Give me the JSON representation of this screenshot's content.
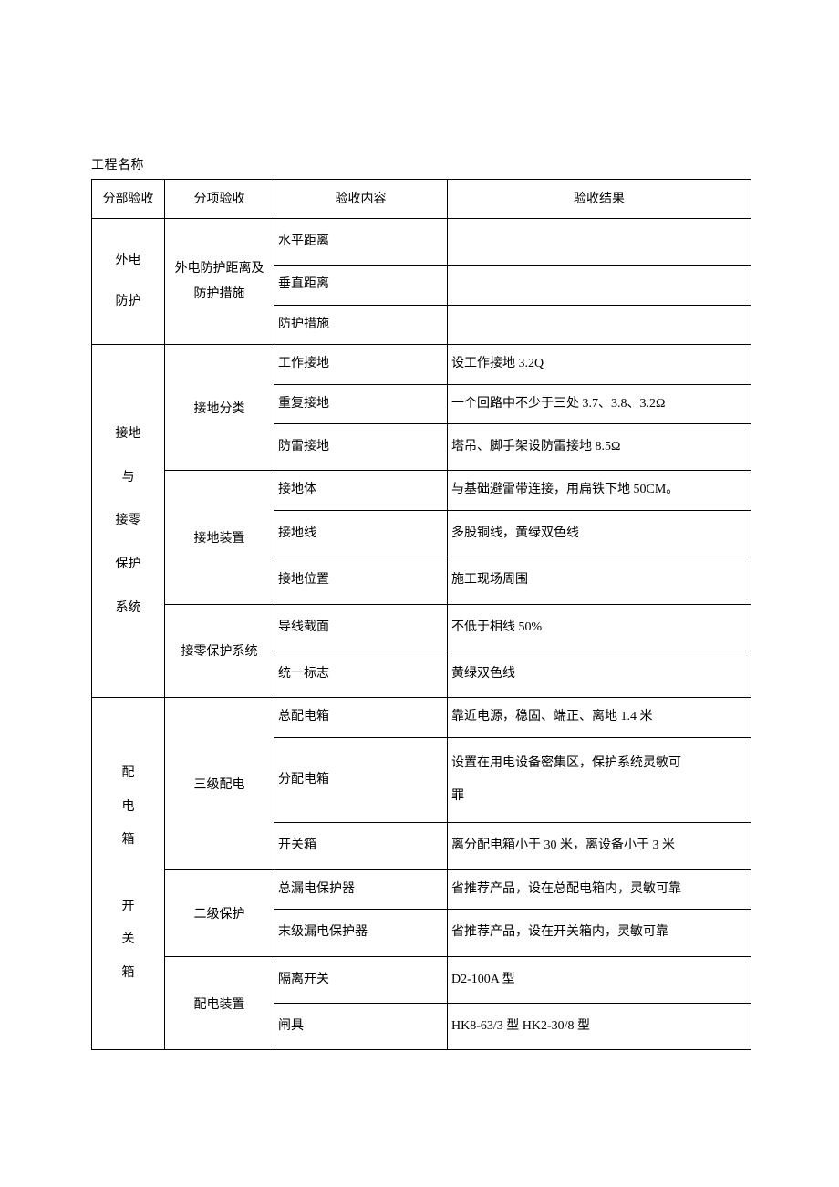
{
  "projectNameLabel": "工程名称",
  "headers": {
    "col1": "分部验收",
    "col2": "分项验收",
    "col3": "验收内容",
    "col4": "验收结果"
  },
  "section1": {
    "col1": "外电\n防护",
    "col2": "外电防护距离及防护措施",
    "rows": [
      {
        "c3": "水平距离",
        "c4": ""
      },
      {
        "c3": "垂直距离",
        "c4": ""
      },
      {
        "c3": "防护措施",
        "c4": ""
      }
    ]
  },
  "section2": {
    "col1": "接地\n与\n接零\n保护\n系统",
    "sub1": {
      "col2": "接地分类",
      "rows": [
        {
          "c3": "工作接地",
          "c4": "设工作接地 3.2Q"
        },
        {
          "c3": "重复接地",
          "c4": "一个回路中不少于三处 3.7、3.8、3.2Ω"
        },
        {
          "c3": "防雷接地",
          "c4": "塔吊、脚手架设防雷接地 8.5Ω"
        }
      ]
    },
    "sub2": {
      "col2": "接地装置",
      "rows": [
        {
          "c3": "接地体",
          "c4": "与基础避雷带连接，用扁铁下地 50CM。"
        },
        {
          "c3": "接地线",
          "c4": "多股铜线，黄绿双色线"
        },
        {
          "c3": "接地位置",
          "c4": "施工现场周围"
        }
      ]
    },
    "sub3": {
      "col2": "接零保护系统",
      "rows": [
        {
          "c3": "导线截面",
          "c4": "不低于相线 50%"
        },
        {
          "c3": "统一标志",
          "c4": "黄绿双色线"
        }
      ]
    }
  },
  "section3": {
    "col1": "配\n电\n箱\n\n开\n关\n箱",
    "sub1": {
      "col2": "三级配电",
      "rows": [
        {
          "c3": "总配电箱",
          "c4": "靠近电源，稳固、端正、离地 1.4 米"
        },
        {
          "c3": "分配电箱",
          "c4": "设置在用电设备密集区，保护系统灵敏可\n罪"
        },
        {
          "c3": "开关箱",
          "c4": "离分配电箱小于 30 米，离设备小于 3 米"
        }
      ]
    },
    "sub2": {
      "col2": "二级保护",
      "rows": [
        {
          "c3": "总漏电保护器",
          "c4": "省推荐产品，设在总配电箱内，灵敏可靠"
        },
        {
          "c3": "末级漏电保护器",
          "c4": "省推荐产品，设在开关箱内，灵敏可靠"
        }
      ]
    },
    "sub3": {
      "col2": "配电装置",
      "rows": [
        {
          "c3": "隔离开关",
          "c4": "D2-100A 型"
        },
        {
          "c3": "闸具",
          "c4": "HK8-63/3 型 HK2-30/8 型"
        }
      ]
    }
  }
}
